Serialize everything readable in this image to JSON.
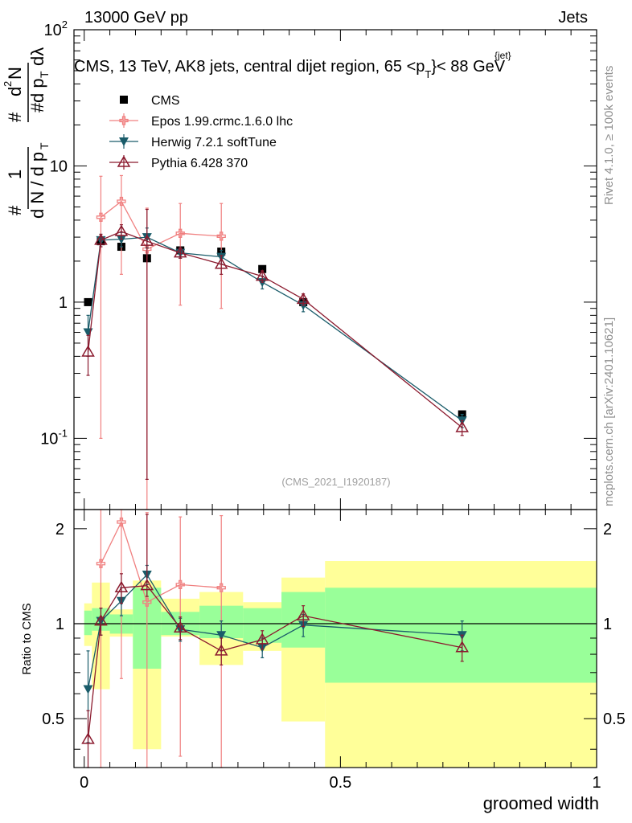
{
  "header": {
    "left": "13000 GeV pp",
    "right": "Jets",
    "title": "CMS, 13 TeV, AK8 jets, central dijet region, 65 <p",
    "title_sub": "T",
    "title_sup": "{jet}",
    "title_end": "}< 88 GeV",
    "watermark": "(CMS_2021_I1920187)",
    "side_top": "Rivet 4.1.0, ≥ 100k events",
    "side_bottom": "mcplots.cern.ch [arXiv:2401.10621]"
  },
  "colors": {
    "cms": "#000000",
    "epos": "#f08080",
    "herwig": "#1a5c6a",
    "pythia": "#8b1a2e",
    "band_inner": "#99ff99",
    "band_outer": "#ffff99"
  },
  "chart_data": [
    {
      "type": "line",
      "panel": "main",
      "yscale": "log",
      "xlim": [
        -0.02,
        1.0
      ],
      "ylim": [
        0.03,
        100
      ],
      "ylabel": "1/dN/dp_T # # d^2N/dp_T dλ",
      "yticklabels": [
        "10^-1",
        "1",
        "10",
        "10^2"
      ],
      "legend_position": "top-left",
      "x": [
        0.0075,
        0.0325,
        0.0725,
        0.1225,
        0.1875,
        0.2675,
        0.3475,
        0.4275,
        0.7375
      ],
      "series": [
        {
          "name": "CMS",
          "marker": "square",
          "values": [
            1.0,
            2.8,
            2.55,
            2.1,
            2.4,
            2.35,
            1.75,
            1.0,
            0.15
          ]
        },
        {
          "name": "Epos 1.99.crmc.1.6.0 lhc",
          "marker": "cross",
          "connect_from": 1,
          "values": [
            null,
            4.2,
            5.5,
            2.45,
            3.2,
            3.05,
            null,
            null,
            null
          ],
          "err_lo": [
            null,
            4.1,
            3.9,
            2.45,
            2.25,
            2.15,
            null,
            null,
            null
          ],
          "err_hi": [
            null,
            4.2,
            3.0,
            2.45,
            2.1,
            2.25,
            null,
            null,
            null
          ]
        },
        {
          "name": "Herwig 7.2.1 softTune",
          "marker": "triangle-down",
          "values": [
            0.6,
            2.85,
            2.9,
            3.0,
            2.3,
            2.15,
            1.4,
            0.95,
            0.135
          ],
          "err_lo": [
            0.2,
            0.3,
            0.35,
            0.5,
            0.2,
            0.25,
            0.15,
            0.1,
            0.015
          ],
          "err_hi": [
            0.2,
            0.3,
            0.35,
            0.5,
            0.2,
            0.25,
            0.15,
            0.1,
            0.015
          ]
        },
        {
          "name": "Pythia 6.428 370",
          "marker": "triangle-up-open",
          "values": [
            0.43,
            2.85,
            3.3,
            2.8,
            2.3,
            1.9,
            1.55,
            1.05,
            0.12
          ],
          "err_lo": [
            0.14,
            0.3,
            0.4,
            2.75,
            0.2,
            0.3,
            0.15,
            0.1,
            0.015
          ],
          "err_hi": [
            0.14,
            0.3,
            0.4,
            2.0,
            0.2,
            0.3,
            0.15,
            0.1,
            0.015
          ]
        }
      ]
    },
    {
      "type": "line",
      "panel": "ratio",
      "xlim": [
        -0.02,
        1.0
      ],
      "ylim": [
        0.35,
        2.3
      ],
      "xlabel": "groomed width",
      "ylabel": "Ratio to CMS",
      "xticklabels": [
        "0",
        "0.5",
        "1"
      ],
      "yticklabels": [
        "0.5",
        "1",
        "2"
      ],
      "x": [
        0.0075,
        0.0325,
        0.0725,
        0.1225,
        0.1875,
        0.2675,
        0.3475,
        0.4275,
        0.7375
      ],
      "bins": [
        0,
        0.015,
        0.05,
        0.095,
        0.15,
        0.225,
        0.31,
        0.385,
        0.47,
        1.0
      ],
      "band_inner": [
        [
          0.92,
          1.1
        ],
        [
          0.95,
          1.12
        ],
        [
          0.93,
          1.07
        ],
        [
          0.72,
          1.3
        ],
        [
          0.92,
          1.09
        ],
        [
          0.9,
          1.14
        ],
        [
          0.87,
          1.12
        ],
        [
          0.84,
          1.26
        ],
        [
          0.65,
          1.3
        ]
      ],
      "band_outer": [
        [
          0.85,
          1.16
        ],
        [
          0.62,
          1.35
        ],
        [
          0.91,
          1.11
        ],
        [
          0.4,
          1.37
        ],
        [
          0.91,
          1.2
        ],
        [
          0.74,
          1.26
        ],
        [
          0.82,
          1.17
        ],
        [
          0.49,
          1.4
        ],
        [
          0.3,
          1.58
        ]
      ],
      "series": [
        {
          "name": "Epos 1.99.crmc.1.6.0 lhc",
          "marker": "cross",
          "connect_from": 1,
          "values": [
            null,
            1.55,
            2.1,
            1.17,
            1.33,
            1.3,
            null,
            null,
            null
          ],
          "err_lo": [
            null,
            1.5,
            1.43,
            1.17,
            0.95,
            0.95,
            null,
            null,
            null
          ],
          "err_hi": [
            null,
            1.6,
            1.42,
            1.08,
            0.85,
            0.9,
            null,
            null,
            null
          ]
        },
        {
          "name": "Herwig 7.2.1 softTune",
          "marker": "triangle-down",
          "values": [
            0.62,
            1.02,
            1.18,
            1.43,
            0.96,
            0.92,
            0.84,
            0.99,
            0.92
          ],
          "err_lo": [
            0.2,
            0.1,
            0.12,
            0.1,
            0.08,
            0.1,
            0.06,
            0.08,
            0.1
          ],
          "err_hi": [
            0.2,
            0.1,
            0.12,
            0.1,
            0.08,
            0.1,
            0.06,
            0.08,
            0.1
          ]
        },
        {
          "name": "Pythia 6.428 370",
          "marker": "triangle-up-open",
          "values": [
            0.43,
            1.02,
            1.3,
            1.32,
            0.97,
            0.82,
            0.89,
            1.06,
            0.84
          ],
          "err_lo": [
            0.1,
            0.1,
            0.14,
            0.1,
            0.08,
            0.08,
            0.06,
            0.08,
            0.08
          ],
          "err_hi": [
            0.1,
            0.1,
            0.14,
            0.9,
            0.08,
            0.08,
            0.06,
            0.08,
            0.08
          ]
        }
      ]
    }
  ]
}
